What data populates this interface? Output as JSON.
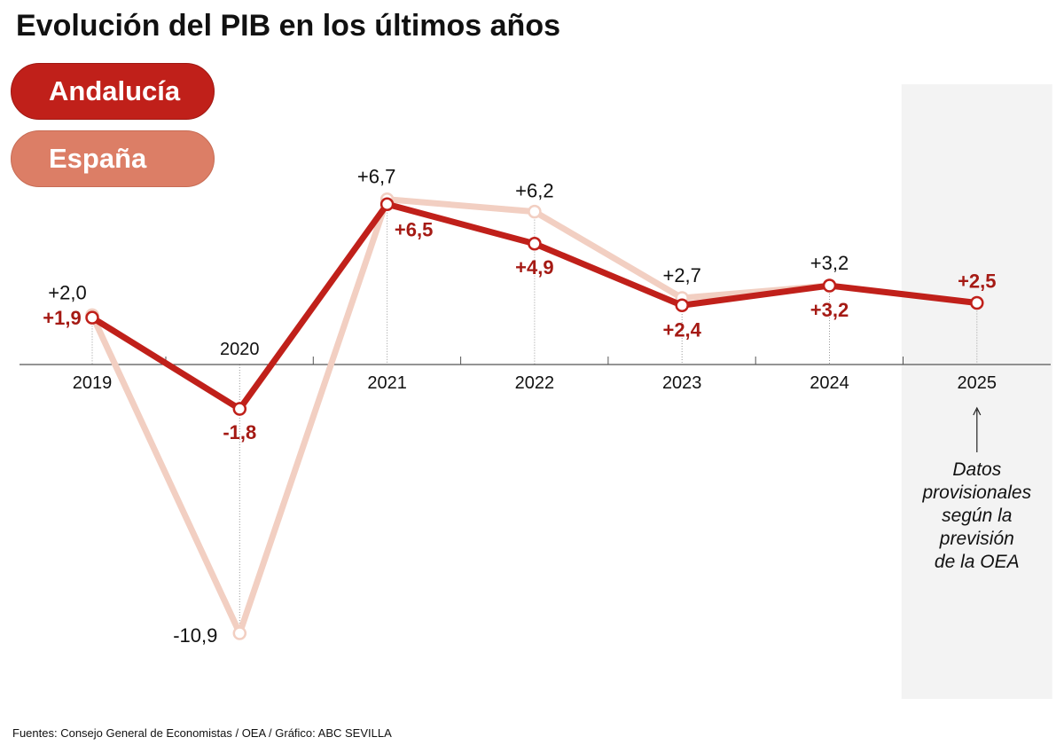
{
  "title": "Evolución del PIB en los últimos años",
  "source": "Fuentes: Consejo General de Economistas / OEA / Gráfico: ABC SEVILLA",
  "chart_data": {
    "type": "line",
    "title": "Evolución del PIB en los últimos años",
    "categories": [
      "2019",
      "2020",
      "2021",
      "2022",
      "2023",
      "2024",
      "2025"
    ],
    "series": [
      {
        "name": "España",
        "color": "#f2cfc2",
        "values": [
          2.0,
          -10.9,
          6.7,
          6.2,
          2.7,
          3.2,
          null
        ],
        "labels": [
          "+2,0",
          "-10,9",
          "+6,7",
          "+6,2",
          "+2,7",
          "+3,2",
          ""
        ]
      },
      {
        "name": "Andalucía",
        "color": "#c0201a",
        "values": [
          1.9,
          -1.8,
          6.5,
          4.9,
          2.4,
          3.2,
          2.5
        ],
        "labels": [
          "+1,9",
          "-1,8",
          "+6,5",
          "+4,9",
          "+2,4",
          "+3,2",
          "+2,5"
        ]
      }
    ],
    "ylim": [
      -12,
      8
    ],
    "grid": false,
    "legend": "top-left",
    "shaded_region": {
      "category": "2025",
      "color": "#f3f3f3"
    },
    "annotation": "Datos provisionales según la previsión de la OEA"
  }
}
